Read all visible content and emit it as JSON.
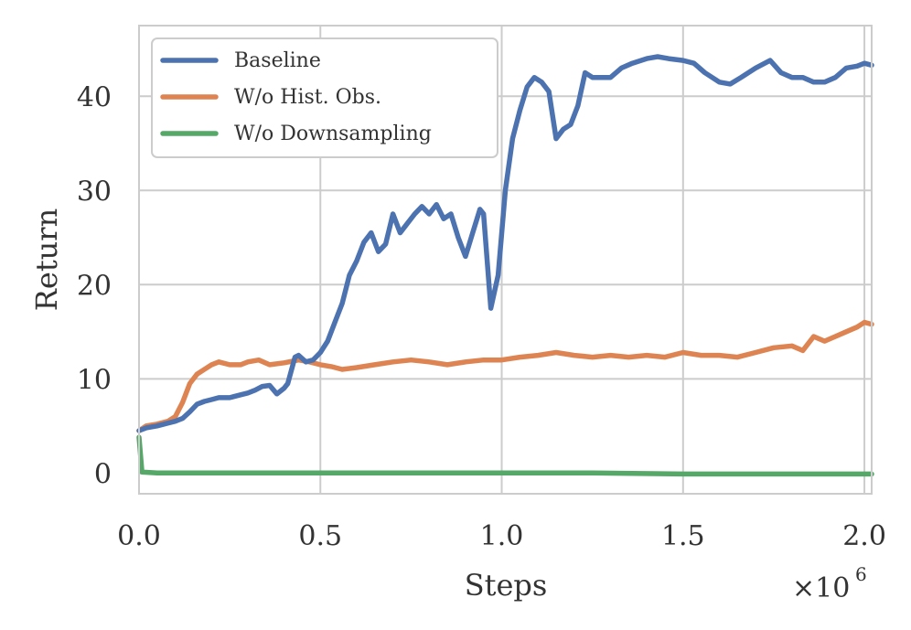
{
  "chart_data": {
    "type": "line",
    "xlabel": "Steps",
    "ylabel": "Return",
    "x_multiplier": {
      "base": "×10",
      "exponent": "6"
    },
    "xlim": [
      0,
      2.02
    ],
    "ylim": [
      -2.2,
      47.5
    ],
    "xticks": [
      {
        "value": 0.0,
        "label": "0.0"
      },
      {
        "value": 0.5,
        "label": "0.5"
      },
      {
        "value": 1.0,
        "label": "1.0"
      },
      {
        "value": 1.5,
        "label": "1.5"
      },
      {
        "value": 2.0,
        "label": "2.0"
      }
    ],
    "yticks": [
      {
        "value": 0,
        "label": "0"
      },
      {
        "value": 10,
        "label": "10"
      },
      {
        "value": 20,
        "label": "20"
      },
      {
        "value": 30,
        "label": "30"
      },
      {
        "value": 40,
        "label": "40"
      }
    ],
    "grid": true,
    "legend_position": "top-left",
    "series": [
      {
        "name": "Baseline",
        "color": "#4c72b0",
        "points": [
          [
            0.0,
            4.5
          ],
          [
            0.02,
            4.8
          ],
          [
            0.05,
            5.0
          ],
          [
            0.08,
            5.3
          ],
          [
            0.1,
            5.5
          ],
          [
            0.12,
            5.8
          ],
          [
            0.14,
            6.5
          ],
          [
            0.16,
            7.3
          ],
          [
            0.18,
            7.6
          ],
          [
            0.2,
            7.8
          ],
          [
            0.22,
            8.0
          ],
          [
            0.25,
            8.0
          ],
          [
            0.28,
            8.3
          ],
          [
            0.3,
            8.5
          ],
          [
            0.32,
            8.8
          ],
          [
            0.34,
            9.2
          ],
          [
            0.36,
            9.3
          ],
          [
            0.38,
            8.4
          ],
          [
            0.4,
            9.0
          ],
          [
            0.41,
            9.5
          ],
          [
            0.43,
            12.3
          ],
          [
            0.44,
            12.5
          ],
          [
            0.46,
            11.8
          ],
          [
            0.48,
            12.0
          ],
          [
            0.5,
            12.8
          ],
          [
            0.52,
            14.0
          ],
          [
            0.54,
            16.0
          ],
          [
            0.56,
            18.0
          ],
          [
            0.58,
            21.0
          ],
          [
            0.6,
            22.5
          ],
          [
            0.62,
            24.5
          ],
          [
            0.64,
            25.5
          ],
          [
            0.66,
            23.5
          ],
          [
            0.68,
            24.3
          ],
          [
            0.7,
            27.5
          ],
          [
            0.72,
            25.5
          ],
          [
            0.74,
            26.5
          ],
          [
            0.76,
            27.5
          ],
          [
            0.78,
            28.3
          ],
          [
            0.8,
            27.5
          ],
          [
            0.82,
            28.5
          ],
          [
            0.84,
            27.0
          ],
          [
            0.86,
            27.5
          ],
          [
            0.88,
            25.0
          ],
          [
            0.9,
            23.0
          ],
          [
            0.92,
            25.5
          ],
          [
            0.94,
            28.0
          ],
          [
            0.95,
            27.5
          ],
          [
            0.97,
            17.5
          ],
          [
            0.99,
            21.0
          ],
          [
            1.01,
            30.0
          ],
          [
            1.03,
            35.5
          ],
          [
            1.05,
            38.5
          ],
          [
            1.07,
            41.0
          ],
          [
            1.09,
            42.0
          ],
          [
            1.11,
            41.5
          ],
          [
            1.13,
            40.5
          ],
          [
            1.15,
            35.5
          ],
          [
            1.17,
            36.5
          ],
          [
            1.19,
            37.0
          ],
          [
            1.21,
            39.0
          ],
          [
            1.23,
            42.5
          ],
          [
            1.25,
            42.0
          ],
          [
            1.28,
            42.0
          ],
          [
            1.3,
            42.0
          ],
          [
            1.33,
            43.0
          ],
          [
            1.36,
            43.5
          ],
          [
            1.4,
            44.0
          ],
          [
            1.43,
            44.2
          ],
          [
            1.46,
            44.0
          ],
          [
            1.5,
            43.8
          ],
          [
            1.53,
            43.5
          ],
          [
            1.56,
            42.5
          ],
          [
            1.6,
            41.5
          ],
          [
            1.63,
            41.3
          ],
          [
            1.66,
            42.0
          ],
          [
            1.7,
            43.0
          ],
          [
            1.74,
            43.8
          ],
          [
            1.77,
            42.5
          ],
          [
            1.8,
            42.0
          ],
          [
            1.83,
            42.0
          ],
          [
            1.86,
            41.5
          ],
          [
            1.89,
            41.5
          ],
          [
            1.92,
            42.0
          ],
          [
            1.95,
            43.0
          ],
          [
            1.98,
            43.2
          ],
          [
            2.0,
            43.5
          ],
          [
            2.02,
            43.3
          ]
        ]
      },
      {
        "name": "W/o Hist. Obs.",
        "color": "#dd8452",
        "points": [
          [
            0.0,
            4.5
          ],
          [
            0.02,
            5.0
          ],
          [
            0.05,
            5.2
          ],
          [
            0.08,
            5.5
          ],
          [
            0.1,
            6.0
          ],
          [
            0.12,
            7.5
          ],
          [
            0.14,
            9.5
          ],
          [
            0.16,
            10.5
          ],
          [
            0.18,
            11.0
          ],
          [
            0.2,
            11.5
          ],
          [
            0.22,
            11.8
          ],
          [
            0.25,
            11.5
          ],
          [
            0.28,
            11.5
          ],
          [
            0.3,
            11.8
          ],
          [
            0.33,
            12.0
          ],
          [
            0.36,
            11.5
          ],
          [
            0.4,
            11.7
          ],
          [
            0.44,
            12.0
          ],
          [
            0.47,
            11.8
          ],
          [
            0.5,
            11.5
          ],
          [
            0.53,
            11.3
          ],
          [
            0.56,
            11.0
          ],
          [
            0.6,
            11.2
          ],
          [
            0.65,
            11.5
          ],
          [
            0.7,
            11.8
          ],
          [
            0.75,
            12.0
          ],
          [
            0.8,
            11.8
          ],
          [
            0.85,
            11.5
          ],
          [
            0.9,
            11.8
          ],
          [
            0.95,
            12.0
          ],
          [
            1.0,
            12.0
          ],
          [
            1.05,
            12.3
          ],
          [
            1.1,
            12.5
          ],
          [
            1.15,
            12.8
          ],
          [
            1.2,
            12.5
          ],
          [
            1.25,
            12.3
          ],
          [
            1.3,
            12.5
          ],
          [
            1.35,
            12.3
          ],
          [
            1.4,
            12.5
          ],
          [
            1.45,
            12.3
          ],
          [
            1.5,
            12.8
          ],
          [
            1.55,
            12.5
          ],
          [
            1.6,
            12.5
          ],
          [
            1.65,
            12.3
          ],
          [
            1.7,
            12.8
          ],
          [
            1.75,
            13.3
          ],
          [
            1.8,
            13.5
          ],
          [
            1.83,
            13.0
          ],
          [
            1.86,
            14.5
          ],
          [
            1.89,
            14.0
          ],
          [
            1.92,
            14.5
          ],
          [
            1.95,
            15.0
          ],
          [
            1.98,
            15.5
          ],
          [
            2.0,
            16.0
          ],
          [
            2.02,
            15.8
          ]
        ]
      },
      {
        "name": "W/o Downsampling",
        "color": "#55a868",
        "points": [
          [
            0.0,
            3.8
          ],
          [
            0.008,
            0.1
          ],
          [
            0.05,
            0.0
          ],
          [
            0.5,
            0.0
          ],
          [
            1.0,
            0.0
          ],
          [
            1.25,
            0.0
          ],
          [
            1.5,
            -0.1
          ],
          [
            2.02,
            -0.1
          ]
        ]
      }
    ]
  }
}
